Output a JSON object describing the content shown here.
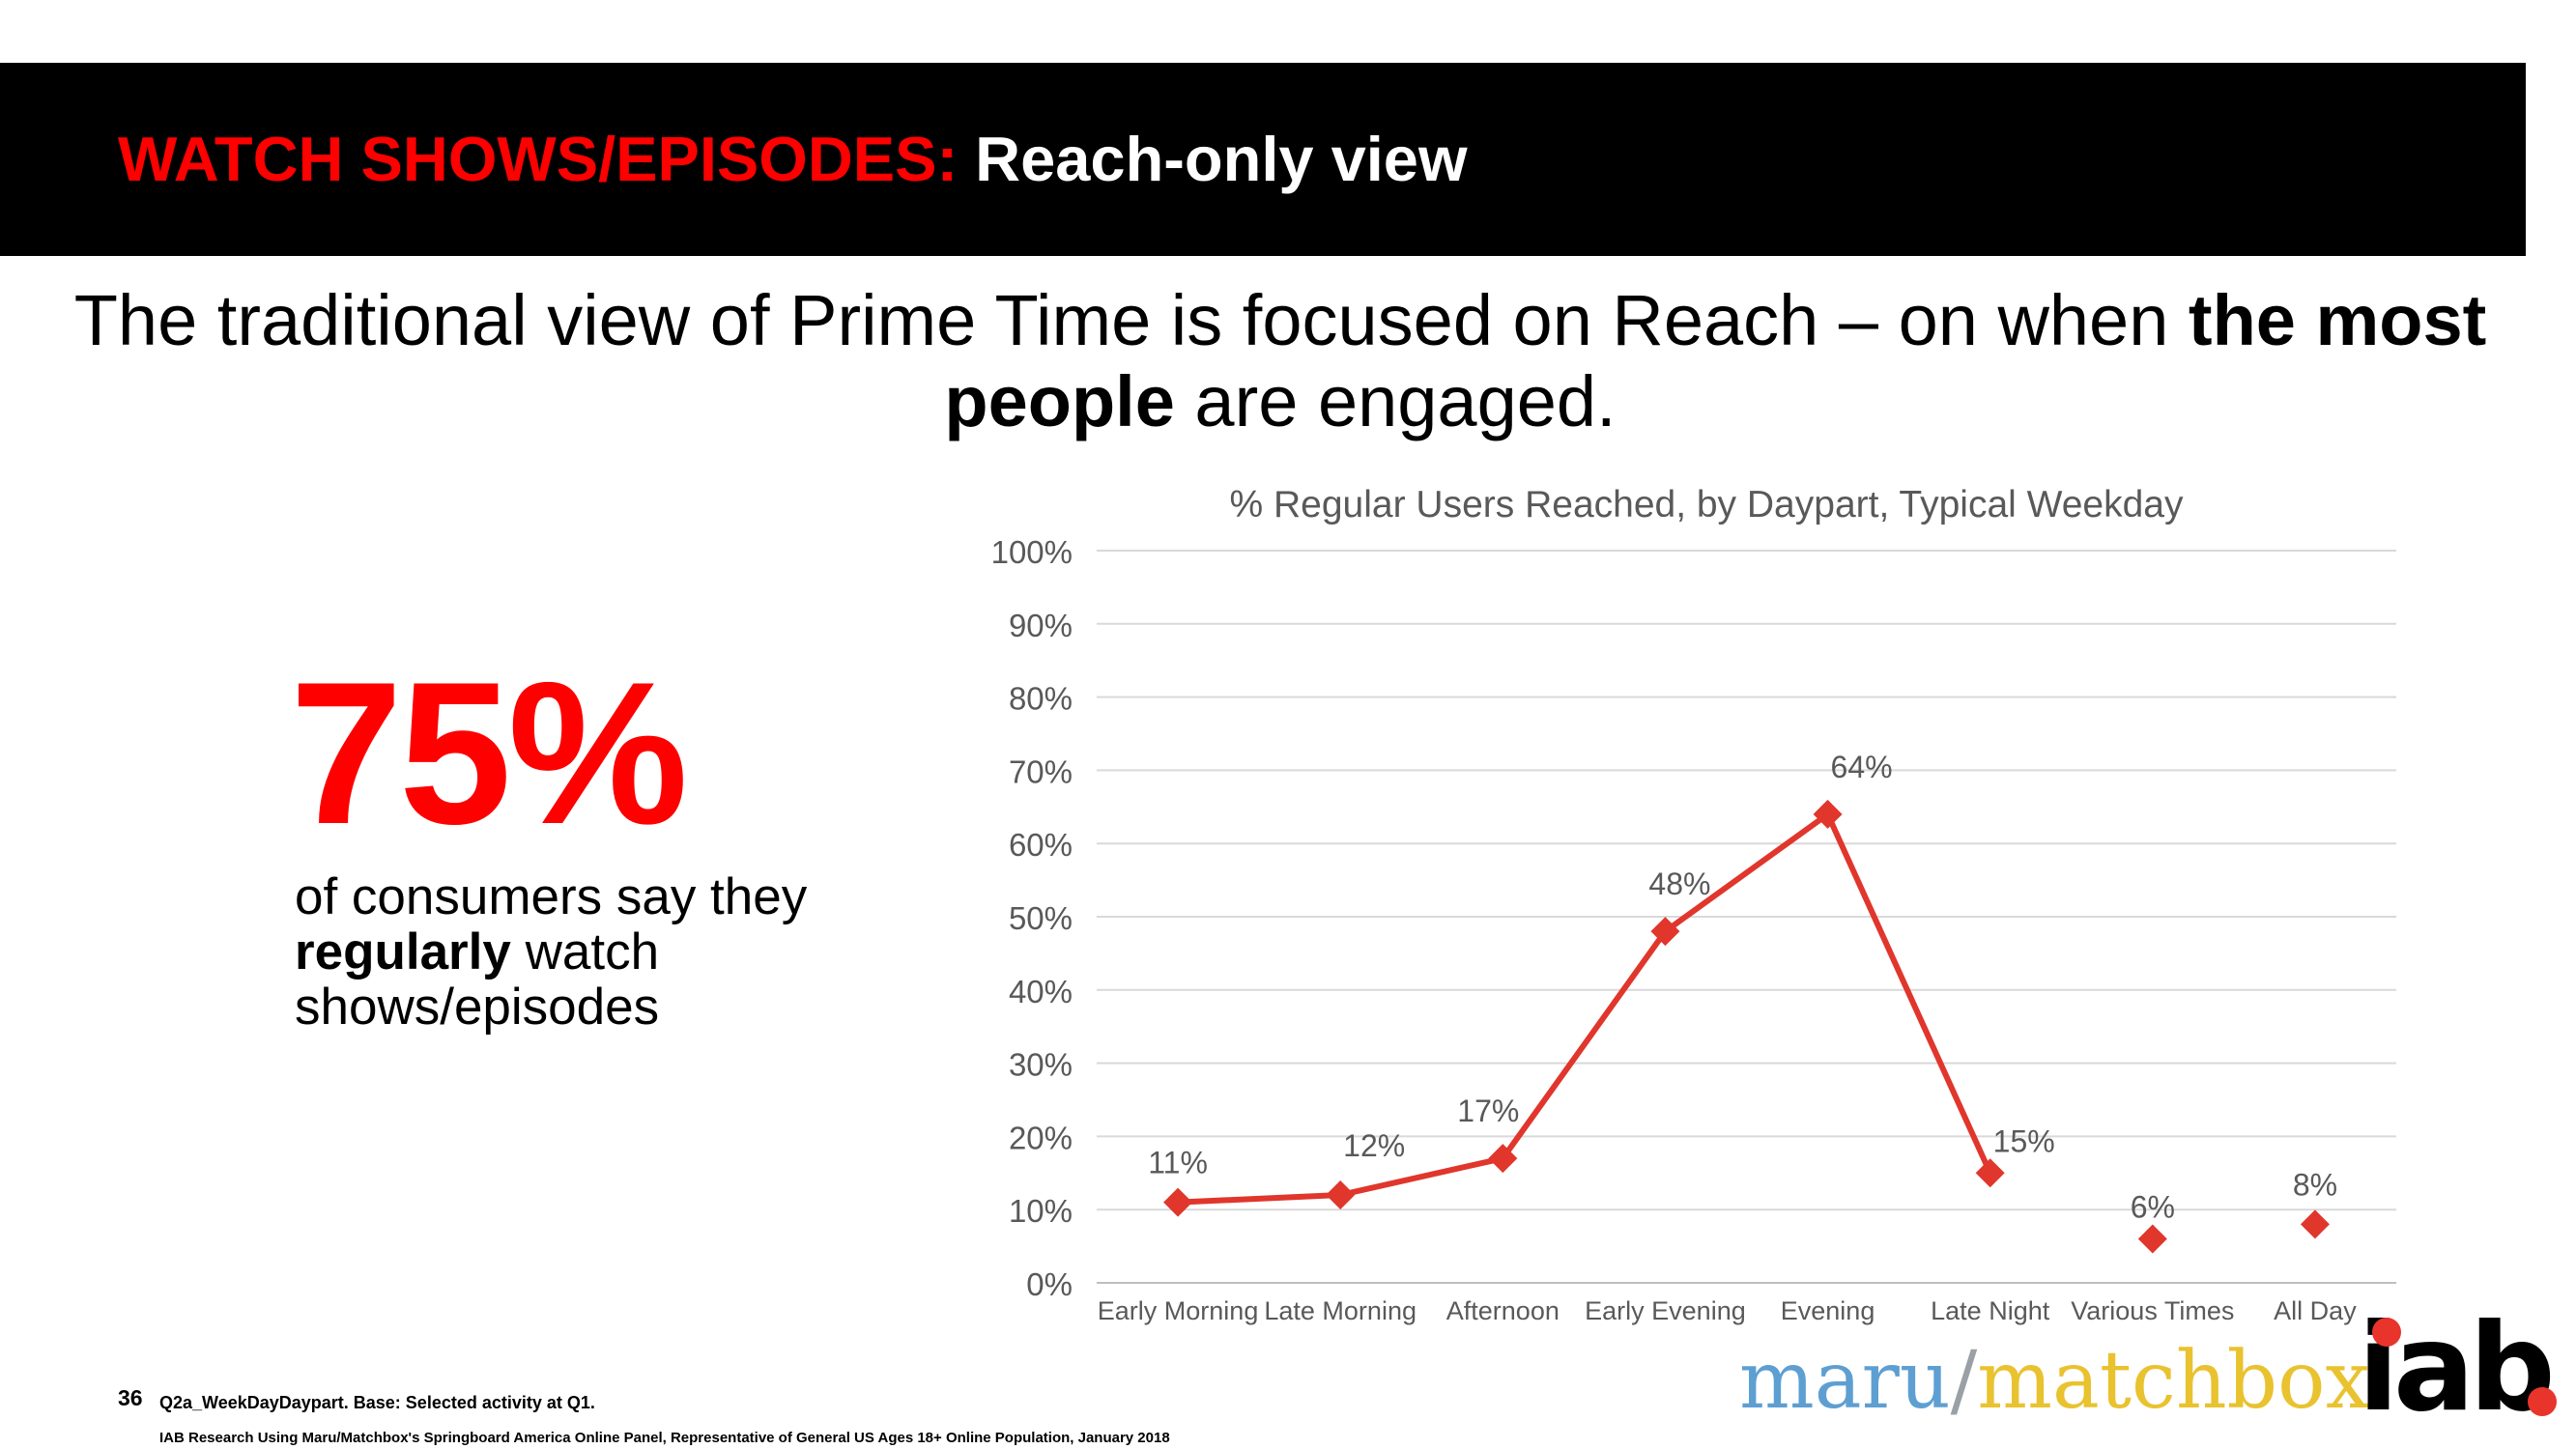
{
  "header": {
    "title_red": "WATCH SHOWS/EPISODES:",
    "title_white": " Reach-only view"
  },
  "headline": {
    "part1": "The traditional view of Prime Time is focused on Reach – on when ",
    "bold1": "the most people",
    "part2": " are engaged."
  },
  "stat": {
    "value": "75%",
    "desc_part1": "of consumers say they ",
    "desc_bold": "regularly",
    "desc_part2": " watch shows/episodes"
  },
  "chart_data": {
    "type": "line",
    "title": "% Regular Users Reached, by Daypart, Typical Weekday",
    "categories": [
      "Early Morning",
      "Late Morning",
      "Afternoon",
      "Early Evening",
      "Evening",
      "Late Night",
      "Various Times",
      "All Day"
    ],
    "values": [
      11,
      12,
      17,
      48,
      64,
      15,
      6,
      8
    ],
    "data_labels": [
      "11%",
      "12%",
      "17%",
      "48%",
      "64%",
      "15%",
      "6%",
      "8%"
    ],
    "connected_through_index": 5,
    "y_ticks": [
      "0%",
      "10%",
      "20%",
      "30%",
      "40%",
      "50%",
      "60%",
      "70%",
      "80%",
      "90%",
      "100%"
    ],
    "ylim": [
      0,
      100
    ],
    "grid": true,
    "series_color": "#e0362c"
  },
  "footer": {
    "page_number": "36",
    "note1": "Q2a_WeekDayDaypart. Base: Selected activity at Q1.",
    "note2": "IAB Research Using Maru/Matchbox's Springboard America Online Panel, Representative of General US Ages 18+ Online Population, January 2018"
  },
  "logos": {
    "maru": "maru",
    "slash": "/",
    "matchbox": "matchbox",
    "iab": "iab"
  }
}
